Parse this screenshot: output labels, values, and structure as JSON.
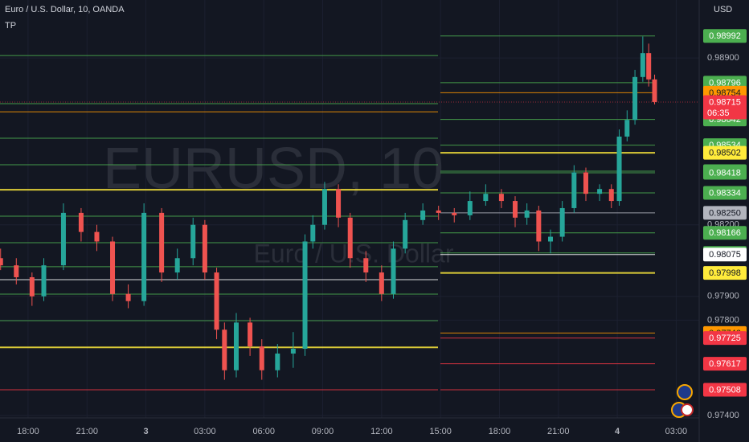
{
  "chart_data": {
    "type": "candlestick",
    "title": "Euro / U.S. Dollar, 10, OANDA",
    "subtitle": "TP",
    "currency": "USD",
    "watermark": "EURUSD, 10",
    "watermark_subtitle": "Euro / U.S. Dollar",
    "up_color": "#26a69a",
    "down_color": "#ef5350",
    "x": [
      -1.4,
      -0.6,
      0.2,
      0.8,
      1.8,
      2.7,
      3.5,
      4.3,
      5.1,
      5.9,
      6.8,
      7.6,
      8.4,
      9.0,
      9.6,
      10.0,
      10.6,
      11.3,
      11.9,
      12.7,
      13.5,
      14.1,
      14.5,
      15.1,
      15.8,
      16.4,
      17.2,
      18.0,
      18.6,
      19.2,
      20.1,
      20.9,
      21.7,
      22.5,
      23.3,
      24.1,
      24.8,
      25.4,
      26.0,
      26.6,
      27.2,
      27.8,
      28.4,
      29.1,
      29.7,
      30.1,
      30.5,
      30.9,
      31.3,
      31.6,
      31.9
    ],
    "open": [
      0.9806,
      0.9803,
      0.9798,
      0.979,
      0.9803,
      0.9825,
      0.9817,
      0.9813,
      0.9791,
      0.9788,
      0.9825,
      0.98,
      0.9806,
      0.982,
      0.98,
      0.9776,
      0.9759,
      0.9779,
      0.9769,
      0.9759,
      0.9766,
      0.9768,
      0.9813,
      0.982,
      0.9835,
      0.9823,
      0.9806,
      0.98,
      0.9791,
      0.981,
      0.9822,
      0.9826,
      0.9825,
      0.9824,
      0.983,
      0.9833,
      0.983,
      0.9823,
      0.9826,
      0.9813,
      0.9815,
      0.9827,
      0.9842,
      0.9833,
      0.9835,
      0.983,
      0.9857,
      0.9864,
      0.9882,
      0.9892,
      0.9881
    ],
    "high": [
      0.981,
      0.9806,
      0.98,
      0.9806,
      0.9829,
      0.9827,
      0.982,
      0.9815,
      0.9795,
      0.9829,
      0.9827,
      0.981,
      0.9823,
      0.9822,
      0.9802,
      0.9779,
      0.9783,
      0.9781,
      0.9772,
      0.977,
      0.9775,
      0.9816,
      0.9824,
      0.9838,
      0.9837,
      0.9825,
      0.9809,
      0.9803,
      0.9813,
      0.9825,
      0.9829,
      0.9828,
      0.9827,
      0.9834,
      0.9837,
      0.9835,
      0.9832,
      0.9829,
      0.9828,
      0.9818,
      0.983,
      0.9845,
      0.9844,
      0.9837,
      0.9837,
      0.986,
      0.9868,
      0.9885,
      0.9899,
      0.9896,
      0.9883
    ],
    "low": [
      0.9801,
      0.9795,
      0.9786,
      0.9788,
      0.9801,
      0.9813,
      0.9809,
      0.9788,
      0.9785,
      0.9786,
      0.9796,
      0.9797,
      0.9803,
      0.9797,
      0.9772,
      0.9755,
      0.9756,
      0.9765,
      0.9755,
      0.9756,
      0.976,
      0.9765,
      0.981,
      0.9818,
      0.9819,
      0.9802,
      0.9796,
      0.9788,
      0.9789,
      0.9808,
      0.982,
      0.9822,
      0.9821,
      0.9822,
      0.9828,
      0.9827,
      0.9819,
      0.982,
      0.9809,
      0.9808,
      0.9813,
      0.9825,
      0.983,
      0.983,
      0.9827,
      0.9828,
      0.9855,
      0.9862,
      0.988,
      0.9878,
      0.98705
    ],
    "close": [
      0.9803,
      0.9798,
      0.979,
      0.9803,
      0.9825,
      0.9817,
      0.9813,
      0.9791,
      0.9788,
      0.9825,
      0.98,
      0.9806,
      0.982,
      0.98,
      0.9776,
      0.9759,
      0.9779,
      0.9769,
      0.9759,
      0.9766,
      0.9768,
      0.9813,
      0.982,
      0.9835,
      0.9823,
      0.9806,
      0.98,
      0.9791,
      0.981,
      0.9822,
      0.9826,
      0.9825,
      0.9824,
      0.983,
      0.9833,
      0.983,
      0.9823,
      0.9826,
      0.9813,
      0.9815,
      0.9827,
      0.9842,
      0.9833,
      0.9835,
      0.983,
      0.9857,
      0.9864,
      0.9882,
      0.9892,
      0.9881,
      0.98715
    ],
    "last_price": 0.98715,
    "last_price_label": "0.98715",
    "countdown": "06:35",
    "last_price_color": "#f23645",
    "levels": {
      "values": [
        0.98992,
        0.98796,
        0.98754,
        0.98642,
        0.98534,
        0.98502,
        0.98425,
        0.98418,
        0.98334,
        0.9825,
        0.98166,
        0.98082,
        0.98075,
        0.97998,
        0.97746,
        0.97725,
        0.97617,
        0.97508
      ],
      "value_labels": [
        "0.98992",
        "0.98796",
        "0.98754",
        "0.98642",
        "0.98534",
        "0.98502",
        "0.98425",
        "0.98418",
        "0.98334",
        "0.98250",
        "0.98166",
        "0.98082",
        "0.98075",
        "0.97998",
        "0.97746",
        "0.97725",
        "0.97617",
        "0.97508"
      ],
      "colors": [
        "#4caf50",
        "#4caf50",
        "#ff9800",
        "#4caf50",
        "#4caf50",
        "#ffeb3b",
        "#4caf50",
        "#4caf50",
        "#4caf50",
        "#b2b5be",
        "#4caf50",
        "#4caf50",
        "#ffffff",
        "#ffeb3b",
        "#ff9800",
        "#f23645",
        "#f23645",
        "#f23645"
      ]
    },
    "prior_levels": {
      "values": [
        0.9891,
        0.98708,
        0.98674,
        0.98563,
        0.98452,
        0.98347,
        0.98236,
        0.98125,
        0.98024,
        0.9797,
        0.97909,
        0.97798,
        0.97686,
        0.97508
      ],
      "colors": [
        "#4caf50",
        "#4caf50",
        "#ff9800",
        "#4caf50",
        "#4caf50",
        "#ffeb3b",
        "#4caf50",
        "#4caf50",
        "#4caf50",
        "#ffffff",
        "#4caf50",
        "#4caf50",
        "#ffeb3b",
        "#f23645"
      ]
    },
    "xlim": [
      -1.43,
      34.17
    ],
    "ylim": [
      0.9739,
      0.99143
    ],
    "xticks": [
      {
        "value": 0,
        "label": "18:00"
      },
      {
        "value": 3,
        "label": "21:00"
      },
      {
        "value": 6,
        "label": "3"
      },
      {
        "value": 9,
        "label": "03:00"
      },
      {
        "value": 12,
        "label": "06:00"
      },
      {
        "value": 15,
        "label": "09:00"
      },
      {
        "value": 18,
        "label": "12:00"
      },
      {
        "value": 21,
        "label": "15:00"
      },
      {
        "value": 24,
        "label": "18:00"
      },
      {
        "value": 27,
        "label": "21:00"
      },
      {
        "value": 30,
        "label": "4"
      },
      {
        "value": 33,
        "label": "03:00"
      }
    ],
    "yticks": [
      {
        "value": 0.989,
        "label": "0.98900"
      },
      {
        "value": 0.982,
        "label": "0.98200"
      },
      {
        "value": 0.979,
        "label": "0.97900"
      },
      {
        "value": 0.978,
        "label": "0.97800"
      },
      {
        "value": 0.974,
        "label": "0.97400"
      }
    ],
    "grid": true
  }
}
